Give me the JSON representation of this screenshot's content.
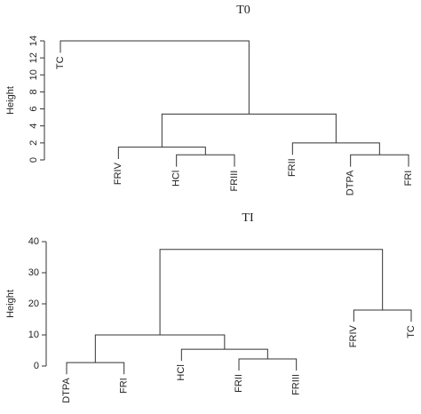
{
  "chart_data": [
    {
      "type": "dendrogram",
      "title": "T0",
      "y_label": "Height",
      "leaves": [
        "TC",
        "FRIV",
        "HCl",
        "FRIII",
        "FRII",
        "DTPA",
        "FRI"
      ],
      "merges": [
        {
          "children": [
            2,
            3
          ],
          "height": 0.6
        },
        {
          "children": [
            1,
            7
          ],
          "height": 1.5
        },
        {
          "children": [
            5,
            6
          ],
          "height": 0.6
        },
        {
          "children": [
            4,
            9
          ],
          "height": 2.0
        },
        {
          "children": [
            8,
            10
          ],
          "height": 5.4
        },
        {
          "children": [
            0,
            11
          ],
          "height": 14.0
        }
      ],
      "ylim": [
        0,
        14
      ],
      "yticks": [
        0,
        2,
        4,
        6,
        8,
        10,
        12,
        14
      ],
      "color": "#000000"
    },
    {
      "type": "dendrogram",
      "title": "TI",
      "y_label": "Height",
      "leaves": [
        "DTPA",
        "FRI",
        "HCl",
        "FRII",
        "FRIII",
        "FRIV",
        "TC"
      ],
      "merges": [
        {
          "children": [
            0,
            1
          ],
          "height": 1.1
        },
        {
          "children": [
            3,
            4
          ],
          "height": 2.3
        },
        {
          "children": [
            2,
            8
          ],
          "height": 5.4
        },
        {
          "children": [
            7,
            9
          ],
          "height": 10.0
        },
        {
          "children": [
            5,
            6
          ],
          "height": 18.0
        },
        {
          "children": [
            10,
            11
          ],
          "height": 37.5
        }
      ],
      "ylim": [
        0,
        40
      ],
      "yticks": [
        0,
        10,
        20,
        30,
        40
      ],
      "color": "#000000"
    }
  ]
}
